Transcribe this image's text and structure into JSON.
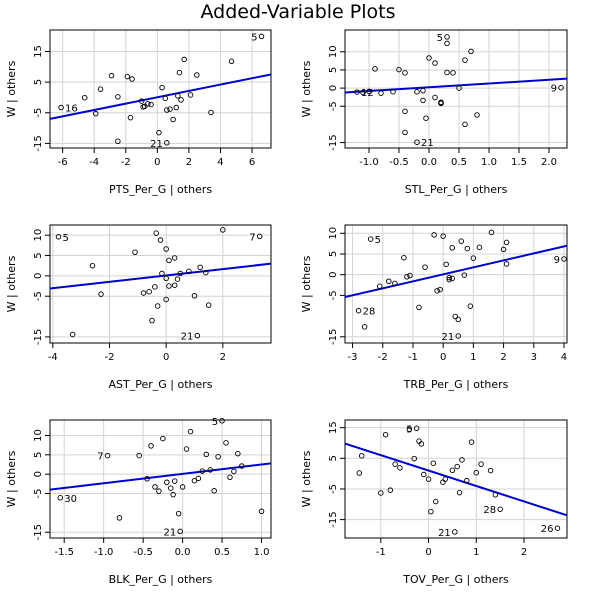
{
  "figure": {
    "title": "Added-Variable Plots"
  },
  "style": {
    "grid_color": "#d3d3d3",
    "line_color": "#0000cd",
    "point_color": "#000000"
  },
  "chart_data": [
    {
      "type": "scatter",
      "xlabel": "PTS_Per_G | others",
      "ylabel": "W  | others",
      "xlim": [
        -6.8,
        7.2
      ],
      "ylim": [
        -16.5,
        22
      ],
      "xticks": [
        -6,
        -4,
        -2,
        0,
        2,
        4,
        6
      ],
      "xtick_labels": [
        "-6",
        "-4",
        "-2",
        "0",
        "2",
        "4",
        "6"
      ],
      "yticks": [
        -15,
        -5,
        5,
        15
      ],
      "ytick_labels": [
        "-15",
        "-5",
        "5",
        "15"
      ],
      "grid": true,
      "points": [
        [
          -6.1,
          -3.3
        ],
        [
          -4.6,
          -0.1
        ],
        [
          -3.9,
          -5.3
        ],
        [
          -3.6,
          2.7
        ],
        [
          -2.9,
          7.1
        ],
        [
          -2.5,
          0.2
        ],
        [
          -1.9,
          6.8
        ],
        [
          -1.7,
          -6.6
        ],
        [
          -1.6,
          6.0
        ],
        [
          -1.0,
          -1.2
        ],
        [
          -0.9,
          -3.1
        ],
        [
          -0.8,
          -2.9
        ],
        [
          -0.6,
          -2.1
        ],
        [
          -0.4,
          -2.3
        ],
        [
          -2.5,
          -14.3
        ],
        [
          0.1,
          -11.5
        ],
        [
          0.3,
          3.2
        ],
        [
          0.5,
          -0.3
        ],
        [
          0.6,
          -14.8
        ],
        [
          0.6,
          -4.1
        ],
        [
          0.8,
          -3.8
        ],
        [
          1.0,
          -7.2
        ],
        [
          1.2,
          -3.3
        ],
        [
          1.3,
          0.5
        ],
        [
          1.4,
          8.1
        ],
        [
          1.5,
          -0.8
        ],
        [
          1.7,
          12.4
        ],
        [
          2.1,
          0.8
        ],
        [
          2.5,
          7.3
        ],
        [
          3.4,
          -4.9
        ],
        [
          4.7,
          11.8
        ],
        [
          6.6,
          19.9
        ]
      ],
      "point_labels": [
        {
          "x": -6.1,
          "y": -3.3,
          "label": "16",
          "side": "right"
        },
        {
          "x": 0.6,
          "y": -14.8,
          "label": "21",
          "side": "left"
        },
        {
          "x": 6.6,
          "y": 19.9,
          "label": "5",
          "side": "left"
        }
      ],
      "fit_line": {
        "x": [
          -6.8,
          7.2
        ],
        "y": [
          -7.0,
          7.5
        ]
      }
    },
    {
      "type": "scatter",
      "xlabel": "STL_Per_G | others",
      "ylabel": "W  | others",
      "xlim": [
        -1.4,
        2.3
      ],
      "ylim": [
        -16.5,
        16
      ],
      "xticks": [
        -1.0,
        -0.5,
        0.0,
        0.5,
        1.0,
        1.5,
        2.0
      ],
      "xtick_labels": [
        "-1.0",
        "-0.5",
        "0.0",
        "0.5",
        "1.0",
        "1.5",
        "2.0"
      ],
      "yticks": [
        -15,
        -5,
        0,
        5,
        10
      ],
      "ytick_labels": [
        "-15",
        "-5",
        "0",
        "5",
        "10"
      ],
      "grid": true,
      "points": [
        [
          -1.2,
          -1.1
        ],
        [
          -1.1,
          -1.2
        ],
        [
          -1.0,
          -0.9
        ],
        [
          -0.9,
          5.3
        ],
        [
          -0.8,
          -1.4
        ],
        [
          -0.6,
          -1.0
        ],
        [
          -0.5,
          5.1
        ],
        [
          -0.4,
          4.2
        ],
        [
          -0.4,
          -6.4
        ],
        [
          -0.4,
          -12.2
        ],
        [
          -0.2,
          -1.0
        ],
        [
          -0.2,
          -14.9
        ],
        [
          -0.1,
          -0.7
        ],
        [
          -0.1,
          -3.4
        ],
        [
          -0.05,
          -8.3
        ],
        [
          0.0,
          8.3
        ],
        [
          0.1,
          6.9
        ],
        [
          0.1,
          -2.6
        ],
        [
          0.2,
          -4.1
        ],
        [
          0.2,
          -3.9
        ],
        [
          0.2,
          -4.2
        ],
        [
          0.3,
          4.3
        ],
        [
          0.3,
          12.3
        ],
        [
          0.3,
          14.1
        ],
        [
          0.4,
          4.2
        ],
        [
          0.5,
          0.0
        ],
        [
          0.6,
          7.7
        ],
        [
          0.6,
          -10.0
        ],
        [
          0.7,
          10.1
        ],
        [
          0.8,
          -7.4
        ],
        [
          2.2,
          0.1
        ]
      ],
      "point_labels": [
        {
          "x": -1.2,
          "y": -1.1,
          "label": "12",
          "side": "right"
        },
        {
          "x": -0.2,
          "y": -14.9,
          "label": "21",
          "side": "right"
        },
        {
          "x": 0.3,
          "y": 14.1,
          "label": "5",
          "side": "left"
        },
        {
          "x": 2.2,
          "y": 0.1,
          "label": "9",
          "side": "left"
        }
      ],
      "fit_line": {
        "x": [
          -1.4,
          2.3
        ],
        "y": [
          -1.2,
          2.6
        ]
      }
    },
    {
      "type": "scatter",
      "xlabel": "AST_Per_G | others",
      "ylabel": "W  | others",
      "xlim": [
        -4.1,
        3.7
      ],
      "ylim": [
        -16.5,
        12.5
      ],
      "xticks": [
        -4,
        -2,
        0,
        2
      ],
      "xtick_labels": [
        "-4",
        "-2",
        "0",
        "2"
      ],
      "yticks": [
        -15,
        -5,
        0,
        5,
        10
      ],
      "ytick_labels": [
        "-15",
        "-5",
        "0",
        "5",
        "10"
      ],
      "grid": true,
      "points": [
        [
          -3.8,
          9.6
        ],
        [
          -3.3,
          -14.4
        ],
        [
          -2.6,
          2.5
        ],
        [
          -2.3,
          -4.5
        ],
        [
          -1.1,
          5.8
        ],
        [
          -0.8,
          -4.2
        ],
        [
          -0.6,
          -3.9
        ],
        [
          -0.5,
          -11.0
        ],
        [
          -0.4,
          -2.7
        ],
        [
          -0.35,
          10.5
        ],
        [
          -0.3,
          -7.4
        ],
        [
          -0.2,
          8.8
        ],
        [
          -0.15,
          0.6
        ],
        [
          0.0,
          6.6
        ],
        [
          0.0,
          -0.6
        ],
        [
          0.0,
          -5.8
        ],
        [
          0.1,
          3.8
        ],
        [
          0.1,
          -2.5
        ],
        [
          0.3,
          -2.3
        ],
        [
          0.3,
          4.4
        ],
        [
          0.4,
          -0.8
        ],
        [
          0.5,
          0.6
        ],
        [
          0.8,
          1.1
        ],
        [
          1.0,
          -4.9
        ],
        [
          1.1,
          -14.7
        ],
        [
          1.2,
          2.1
        ],
        [
          1.4,
          0.8
        ],
        [
          1.5,
          -7.2
        ],
        [
          2.0,
          11.3
        ],
        [
          3.3,
          9.7
        ]
      ],
      "point_labels": [
        {
          "x": -3.8,
          "y": 9.6,
          "label": "5",
          "side": "right"
        },
        {
          "x": 1.1,
          "y": -14.7,
          "label": "21",
          "side": "left"
        },
        {
          "x": 3.3,
          "y": 9.7,
          "label": "7",
          "side": "left"
        }
      ],
      "fit_line": {
        "x": [
          -4.1,
          3.7
        ],
        "y": [
          -3.1,
          3.0
        ]
      }
    },
    {
      "type": "scatter",
      "xlabel": "TRB_Per_G | others",
      "ylabel": "W  | others",
      "xlim": [
        -3.25,
        4.1
      ],
      "ylim": [
        -16.5,
        12
      ],
      "xticks": [
        -3,
        -2,
        -1,
        0,
        1,
        2,
        3,
        4
      ],
      "xtick_labels": [
        "-3",
        "-2",
        "-1",
        "0",
        "1",
        "2",
        "3",
        "4"
      ],
      "yticks": [
        -15,
        -5,
        0,
        5,
        10
      ],
      "ytick_labels": [
        "-15",
        "-5",
        "0",
        "5",
        "10"
      ],
      "grid": true,
      "points": [
        [
          -2.8,
          -8.7
        ],
        [
          -2.6,
          -12.6
        ],
        [
          -2.4,
          8.6
        ],
        [
          -2.1,
          -2.8
        ],
        [
          -1.8,
          -1.6
        ],
        [
          -1.6,
          -2.1
        ],
        [
          -1.3,
          4.1
        ],
        [
          -1.2,
          -0.5
        ],
        [
          -1.1,
          -0.2
        ],
        [
          -0.8,
          -7.9
        ],
        [
          -0.6,
          1.8
        ],
        [
          -0.3,
          9.6
        ],
        [
          -0.2,
          -3.9
        ],
        [
          -0.1,
          -3.6
        ],
        [
          0.0,
          9.3
        ],
        [
          0.1,
          2.5
        ],
        [
          0.2,
          -0.7
        ],
        [
          0.2,
          -1.2
        ],
        [
          0.3,
          6.5
        ],
        [
          0.3,
          -0.9
        ],
        [
          0.4,
          -10.1
        ],
        [
          0.5,
          -10.8
        ],
        [
          0.5,
          -14.8
        ],
        [
          0.6,
          8.1
        ],
        [
          0.7,
          -0.1
        ],
        [
          0.8,
          6.3
        ],
        [
          0.9,
          -7.6
        ],
        [
          1.0,
          4.0
        ],
        [
          1.2,
          6.6
        ],
        [
          1.6,
          10.2
        ],
        [
          2.0,
          6.1
        ],
        [
          2.1,
          7.8
        ],
        [
          2.1,
          2.6
        ],
        [
          4.0,
          3.8
        ]
      ],
      "point_labels": [
        {
          "x": -2.8,
          "y": -8.7,
          "label": "28",
          "side": "right"
        },
        {
          "x": -2.4,
          "y": 8.6,
          "label": "5",
          "side": "right"
        },
        {
          "x": 0.5,
          "y": -14.8,
          "label": "21",
          "side": "left"
        },
        {
          "x": 4.0,
          "y": 3.8,
          "label": "9",
          "side": "left"
        }
      ],
      "fit_line": {
        "x": [
          -3.25,
          4.1
        ],
        "y": [
          -5.4,
          7.0
        ]
      }
    },
    {
      "type": "scatter",
      "xlabel": "BLK_Per_G | others",
      "ylabel": "W  | others",
      "xlim": [
        -1.68,
        1.12
      ],
      "ylim": [
        -16.5,
        14
      ],
      "xticks": [
        -1.5,
        -1.0,
        -0.5,
        0.0,
        0.5,
        1.0
      ],
      "xtick_labels": [
        "-1.5",
        "-1.0",
        "-0.5",
        "0.0",
        "0.5",
        "1.0"
      ],
      "yticks": [
        -15,
        -5,
        0,
        5,
        10
      ],
      "ytick_labels": [
        "-15",
        "-5",
        "0",
        "5",
        "10"
      ],
      "grid": true,
      "points": [
        [
          -1.55,
          -6.1
        ],
        [
          -0.95,
          4.8
        ],
        [
          -0.8,
          -11.3
        ],
        [
          -0.55,
          4.8
        ],
        [
          -0.45,
          -1.2
        ],
        [
          -0.4,
          7.3
        ],
        [
          -0.35,
          -3.3
        ],
        [
          -0.3,
          -4.4
        ],
        [
          -0.25,
          9.2
        ],
        [
          -0.2,
          -2.1
        ],
        [
          -0.15,
          -3.6
        ],
        [
          -0.12,
          -5.3
        ],
        [
          -0.1,
          -1.8
        ],
        [
          -0.05,
          -10.2
        ],
        [
          -0.03,
          -14.8
        ],
        [
          0.0,
          -3.3
        ],
        [
          0.05,
          6.5
        ],
        [
          0.1,
          11.0
        ],
        [
          0.15,
          -1.7
        ],
        [
          0.2,
          -1.1
        ],
        [
          0.25,
          0.8
        ],
        [
          0.3,
          5.1
        ],
        [
          0.35,
          1.1
        ],
        [
          0.4,
          -4.3
        ],
        [
          0.45,
          4.5
        ],
        [
          0.5,
          13.8
        ],
        [
          0.55,
          8.1
        ],
        [
          0.6,
          -0.8
        ],
        [
          0.65,
          0.7
        ],
        [
          0.7,
          5.3
        ],
        [
          0.75,
          2.1
        ],
        [
          1.0,
          -9.6
        ]
      ],
      "point_labels": [
        {
          "x": -1.55,
          "y": -6.1,
          "label": "30",
          "side": "right"
        },
        {
          "x": -0.95,
          "y": 4.8,
          "label": "7",
          "side": "left"
        },
        {
          "x": -0.03,
          "y": -14.8,
          "label": "21",
          "side": "left"
        },
        {
          "x": 0.5,
          "y": 13.8,
          "label": "5",
          "side": "left"
        }
      ],
      "fit_line": {
        "x": [
          -1.68,
          1.12
        ],
        "y": [
          -4.0,
          2.8
        ]
      }
    },
    {
      "type": "scatter",
      "xlabel": "TOV_Per_G | others",
      "ylabel": "W  | others",
      "xlim": [
        -1.75,
        2.9
      ],
      "ylim": [
        -21,
        17.5
      ],
      "xticks": [
        -1,
        0,
        1,
        2
      ],
      "xtick_labels": [
        "-1",
        "0",
        "1",
        "2"
      ],
      "yticks": [
        -15,
        -5,
        5,
        15
      ],
      "ytick_labels": [
        "-15",
        "-5",
        "5",
        "15"
      ],
      "grid": true,
      "points": [
        [
          -1.45,
          0.2
        ],
        [
          -1.4,
          5.8
        ],
        [
          -1.0,
          -6.3
        ],
        [
          -0.9,
          12.7
        ],
        [
          -0.8,
          -5.4
        ],
        [
          -0.7,
          3.1
        ],
        [
          -0.6,
          1.9
        ],
        [
          -0.4,
          14.5
        ],
        [
          -0.3,
          4.9
        ],
        [
          -0.25,
          14.8
        ],
        [
          -0.2,
          10.6
        ],
        [
          -0.15,
          9.7
        ],
        [
          -0.1,
          -0.3
        ],
        [
          0.0,
          -1.8
        ],
        [
          0.05,
          -12.4
        ],
        [
          0.1,
          3.4
        ],
        [
          0.15,
          -9.1
        ],
        [
          0.3,
          -2.8
        ],
        [
          0.35,
          -1.8
        ],
        [
          0.5,
          1.1
        ],
        [
          0.6,
          2.3
        ],
        [
          0.65,
          -6.2
        ],
        [
          0.7,
          4.5
        ],
        [
          0.8,
          -2.3
        ],
        [
          0.9,
          10.3
        ],
        [
          1.0,
          0.3
        ],
        [
          1.1,
          3.1
        ],
        [
          1.3,
          1.0
        ],
        [
          1.4,
          -6.9
        ],
        [
          1.5,
          -11.6
        ],
        [
          0.55,
          -19.0
        ],
        [
          2.7,
          -17.8
        ]
      ],
      "point_labels": [
        {
          "x": -0.25,
          "y": 14.8,
          "label": "5",
          "side": "left"
        },
        {
          "x": 0.55,
          "y": -19.0,
          "label": "21",
          "side": "left"
        },
        {
          "x": 1.5,
          "y": -11.6,
          "label": "28",
          "side": "left"
        },
        {
          "x": 2.7,
          "y": -17.8,
          "label": "26",
          "side": "left"
        }
      ],
      "fit_line": {
        "x": [
          -1.75,
          2.9
        ],
        "y": [
          9.8,
          -13.6
        ]
      }
    }
  ]
}
